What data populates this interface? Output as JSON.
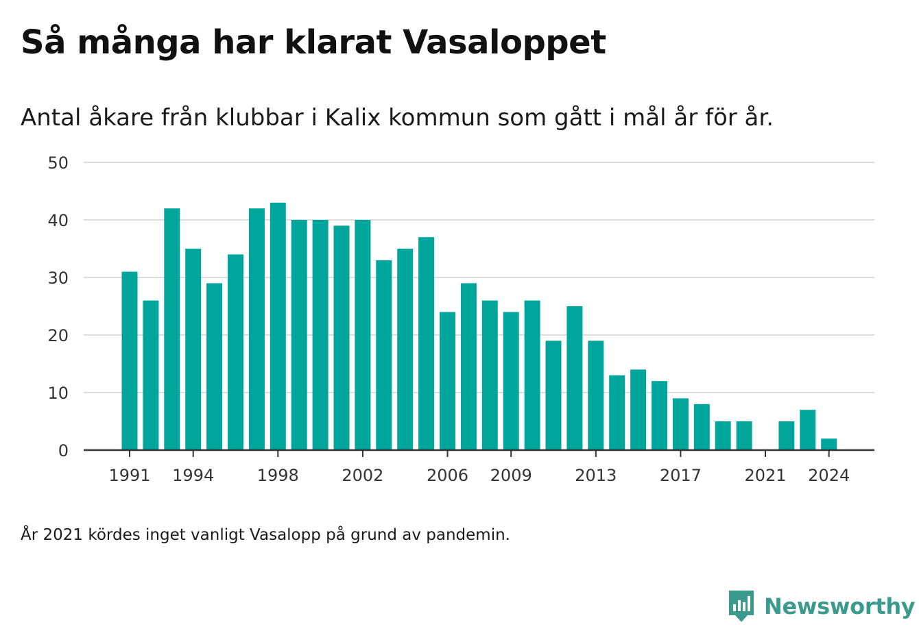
{
  "title": "Så många har klarat Vasaloppet",
  "subtitle": "Antal åkare från klubbar i Kalix kommun som gått i mål år för år.",
  "note": "År 2021 kördes inget vanligt Vasalopp på grund av pandemin.",
  "brand": {
    "name": "Newsworthy",
    "icon": "newsworthy-logo-icon",
    "color": "#3a9b8d"
  },
  "chart_data": {
    "type": "bar",
    "bar_color": "#00a69c",
    "categories": [
      1991,
      1992,
      1993,
      1994,
      1995,
      1996,
      1997,
      1998,
      1999,
      2000,
      2001,
      2002,
      2003,
      2004,
      2005,
      2006,
      2007,
      2008,
      2009,
      2010,
      2011,
      2012,
      2013,
      2014,
      2015,
      2016,
      2017,
      2018,
      2019,
      2020,
      2021,
      2022,
      2023,
      2024
    ],
    "values": [
      31,
      26,
      42,
      35,
      29,
      34,
      42,
      43,
      40,
      40,
      39,
      40,
      33,
      35,
      37,
      24,
      29,
      26,
      24,
      26,
      19,
      25,
      19,
      13,
      14,
      12,
      9,
      8,
      5,
      5,
      0,
      5,
      7,
      2
    ],
    "x_tick_labels": [
      "1991",
      "1994",
      "1998",
      "2002",
      "2006",
      "2009",
      "2013",
      "2017",
      "2021",
      "2024"
    ],
    "y_ticks": [
      0,
      10,
      20,
      30,
      40,
      50
    ],
    "ylim": [
      0,
      50
    ],
    "grid": true,
    "xlabel": "",
    "ylabel": ""
  }
}
